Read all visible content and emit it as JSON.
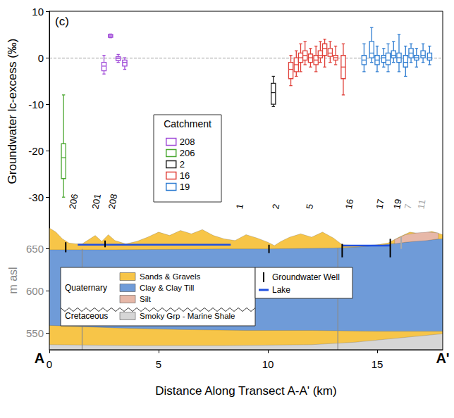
{
  "chart_data": [
    {
      "type": "boxplot",
      "panel_label": "(c)",
      "y_label": "Groundwater lc-excess (‰)",
      "xlim": [
        0,
        18
      ],
      "ylim": [
        -33,
        10
      ],
      "yticks": [
        -30,
        -20,
        -10,
        0,
        10
      ],
      "grid": false,
      "reference_line": 0,
      "legend": "center",
      "legend_title": "Catchment",
      "series": [
        {
          "name": "208",
          "color": "#a04bd8",
          "x": [
            2.5,
            2.8,
            3.15,
            3.45
          ],
          "boxes": [
            [
              -3.5,
              -2.8,
              -1.8,
              -1,
              0.5
            ],
            [
              4.3,
              4.4,
              4.7,
              5.0,
              5.1
            ],
            [
              -1,
              -0.6,
              -0.2,
              0.2,
              0.7
            ],
            [
              -2.5,
              -1.8,
              -1,
              -0.5,
              0
            ]
          ]
        },
        {
          "name": "206",
          "color": "#4ca832",
          "x": [
            0.65
          ],
          "boxes": [
            [
              -30,
              -26,
              -21.5,
              -18.5,
              -8
            ]
          ]
        },
        {
          "name": "2",
          "color": "#222222",
          "x": [
            10.25
          ],
          "boxes": [
            [
              -10.5,
              -10,
              -7.5,
              -5.5,
              -4
            ]
          ]
        },
        {
          "name": "16",
          "color": "#e0413a",
          "x": [
            11.05,
            11.3,
            11.5,
            11.7,
            11.95,
            12.2,
            12.4,
            12.6,
            12.85,
            13.1,
            13.45
          ],
          "boxes": [
            [
              -6,
              -4.5,
              -2.5,
              -1,
              0.5
            ],
            [
              -4,
              -3,
              -1.5,
              0,
              1.5
            ],
            [
              -3,
              -1,
              0,
              1,
              3
            ],
            [
              -1.5,
              -0.5,
              0.5,
              1.5,
              3.5
            ],
            [
              -2,
              -1,
              0,
              0.8,
              2
            ],
            [
              -3,
              -1.5,
              -0.5,
              0.5,
              2.5
            ],
            [
              -1,
              0,
              0.5,
              1.5,
              3.5
            ],
            [
              -2,
              0.5,
              2,
              3,
              4
            ],
            [
              -1,
              0.3,
              1,
              2,
              3.5
            ],
            [
              -1.5,
              -0.5,
              0,
              0.5,
              2.5
            ],
            [
              -8,
              -4.5,
              -2,
              0.5,
              3
            ]
          ]
        },
        {
          "name": "19",
          "color": "#2f7dd1",
          "x": [
            14.4,
            14.75,
            15.0,
            15.3,
            15.5,
            15.75,
            16.0,
            16.3,
            16.55,
            16.8,
            17.1,
            17.4
          ],
          "boxes": [
            [
              -3,
              -1.5,
              -0.5,
              0.5,
              3
            ],
            [
              -1,
              0,
              1,
              3.5,
              6.5
            ],
            [
              -3,
              -1.5,
              -0.5,
              0.5,
              2.5
            ],
            [
              -2,
              -1,
              0,
              0.5,
              2
            ],
            [
              -3,
              -1.5,
              -0.5,
              1,
              3
            ],
            [
              -1,
              0,
              0.5,
              1.5,
              3.5
            ],
            [
              -3,
              -1,
              0,
              1,
              5
            ],
            [
              -4,
              -2,
              -1,
              0.5,
              2.5
            ],
            [
              -1,
              0,
              1,
              2,
              3
            ],
            [
              -2,
              -0.5,
              0,
              0.5,
              2
            ],
            [
              -1,
              0,
              0.5,
              1.5,
              3
            ],
            [
              -1.5,
              -0.5,
              0,
              1,
              2.5
            ]
          ]
        }
      ]
    },
    {
      "type": "cross_section",
      "x_label": "Distance Along Transect A-A' (km)",
      "y_label": "m asl",
      "start_label": "A",
      "end_label": "A'",
      "xlim": [
        0,
        18
      ],
      "xticks": [
        0,
        5,
        10,
        15
      ],
      "ylim": [
        530,
        695
      ],
      "yticks": [
        550,
        600,
        650
      ],
      "grid": false,
      "layers": [
        {
          "name": "Sands & Gravels",
          "color": "#f7c548",
          "x": [
            0,
            0.3,
            0.6,
            0.9,
            1.2,
            1.5,
            1.8,
            2.1,
            2.4,
            2.7,
            3.0,
            3.5,
            4.0,
            4.5,
            5.0,
            5.5,
            6.0,
            6.5,
            7.0,
            7.5,
            8.0,
            8.5,
            9.0,
            9.5,
            10.0,
            10.3,
            10.6,
            11.0,
            11.5,
            12.0,
            12.5,
            13.0,
            13.4,
            14.0,
            14.5,
            15.0,
            15.5,
            16.0,
            16.5,
            17.0,
            17.5,
            18.0
          ],
          "top": [
            675,
            670,
            662,
            657,
            656,
            656,
            661,
            666,
            659,
            667,
            660,
            656,
            659,
            664,
            670,
            666,
            672,
            668,
            673,
            666,
            662,
            660,
            667,
            663,
            658,
            654,
            659,
            664,
            668,
            664,
            670,
            663,
            655,
            654,
            654,
            655,
            657,
            664,
            670,
            668,
            671,
            667
          ]
        },
        {
          "name": "Clay & Clay Till",
          "color": "#6f9bd8",
          "x": [
            0,
            3,
            8,
            10,
            13,
            14,
            15,
            16,
            17,
            18
          ],
          "top": [
            649,
            649,
            650,
            650,
            651,
            652,
            654,
            657,
            660,
            662
          ]
        },
        {
          "name": "Sands & Gravels",
          "color": "#f7c548",
          "x": [
            0,
            3,
            6,
            9,
            12,
            15,
            18
          ],
          "top": [
            559,
            556,
            554,
            553,
            553,
            552,
            552
          ]
        },
        {
          "name": "Smoky Grp - Marine Shale",
          "color": "#d6d6d6",
          "x": [
            0,
            4,
            8,
            12,
            14,
            16,
            18
          ],
          "top": [
            536,
            535,
            535,
            536,
            539,
            544,
            549
          ]
        },
        {
          "name": "Silt",
          "color": "#e7b8a8",
          "x": [
            15.8,
            16.3,
            16.8,
            17.3,
            17.8
          ],
          "top": [
            661,
            667,
            669,
            670,
            669
          ],
          "bottom": [
            656,
            658,
            659,
            660,
            662
          ]
        }
      ],
      "lake_color": "#1f4fe0",
      "lakes": [
        {
          "from": 1.3,
          "to": 8.3,
          "elevation": 655
        },
        {
          "from": 13.4,
          "to": 15.6,
          "elevation": 654
        }
      ],
      "section_lines": [
        {
          "x": 1.5,
          "top": 650
        },
        {
          "x": 13.2,
          "top": 651
        }
      ],
      "wells": [
        {
          "label": "206",
          "x": 0.75,
          "bottom": 646,
          "top": 658,
          "color": "#000000"
        },
        {
          "label": "201",
          "x": 1.8,
          "color": "#000000"
        },
        {
          "label": "208",
          "x": 2.55,
          "bottom": 652,
          "top": 660,
          "color": "#000000"
        },
        {
          "label": "1",
          "x": 8.4,
          "color": "#000000"
        },
        {
          "label": "2",
          "x": 10.05,
          "bottom": 645,
          "top": 655,
          "color": "#000000"
        },
        {
          "label": "5",
          "x": 11.6,
          "color": "#000000"
        },
        {
          "label": "16",
          "x": 13.4,
          "bottom": 640,
          "top": 656,
          "color": "#000000"
        },
        {
          "label": "17",
          "x": 14.8,
          "color": "#000000"
        },
        {
          "label": "19",
          "x": 15.6,
          "bottom": 640,
          "top": 662,
          "color": "#000000"
        },
        {
          "label": "7",
          "x": 16.1,
          "bottom": 650,
          "top": 664,
          "color": "#aaaaaa"
        },
        {
          "label": "11",
          "x": 16.7,
          "color": "#aaaaaa"
        }
      ],
      "geology_legend": {
        "groups": [
          {
            "label": "Quaternary",
            "items": [
              "Sands & Gravels",
              "Clay & Clay Till",
              "Silt"
            ]
          },
          {
            "label": "Cretaceous",
            "items": [
              "Smoky Grp - Marine Shale"
            ]
          }
        ],
        "well": "Groundwater Well",
        "lake": "Lake"
      }
    }
  ]
}
